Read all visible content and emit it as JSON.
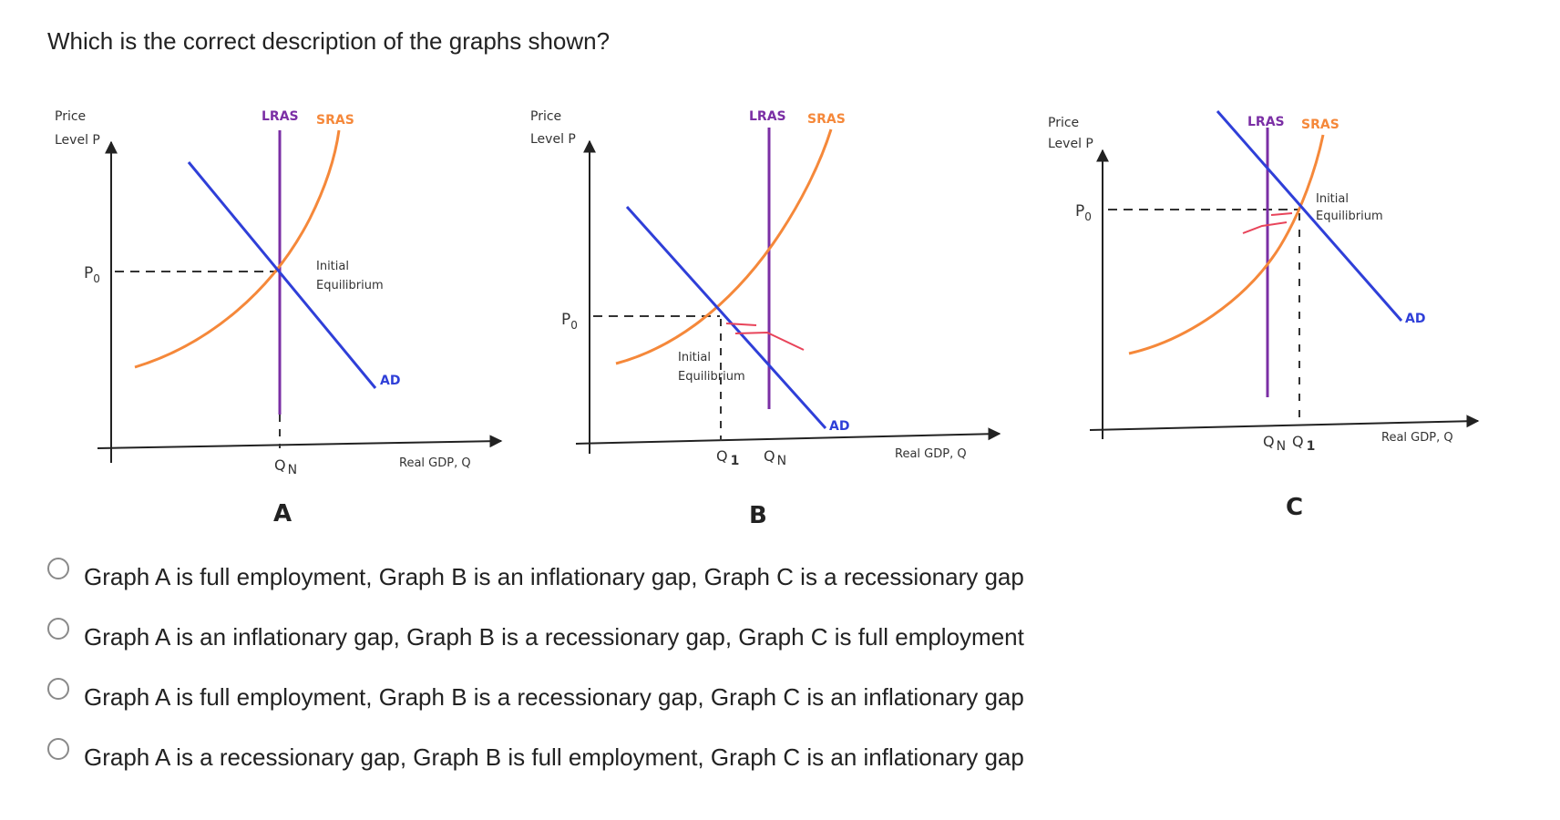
{
  "question": "Which is the correct description of the graphs shown?",
  "graphs": [
    {
      "letter": "A",
      "y_label_1": "Price",
      "y_label_2": "Level P",
      "x_label": "Real GDP, Q",
      "lras_label": "LRAS",
      "sras_label": "SRAS",
      "ad_label": "AD",
      "p_label": "P",
      "p_sub": "0",
      "q_labels": [
        {
          "text": "Q",
          "sub": "N"
        }
      ],
      "annotation_1": "Initial",
      "annotation_2": "Equilibrium"
    },
    {
      "letter": "B",
      "y_label_1": "Price",
      "y_label_2": "Level P",
      "x_label": "Real GDP, Q",
      "lras_label": "LRAS",
      "sras_label": "SRAS",
      "ad_label": "AD",
      "p_label": "P",
      "p_sub": "0",
      "q_labels": [
        {
          "text": "Q",
          "sub": "1"
        },
        {
          "text": "Q",
          "sub": "N"
        }
      ],
      "annotation_1": "Initial",
      "annotation_2": "Equilibrium"
    },
    {
      "letter": "C",
      "y_label_1": "Price",
      "y_label_2": "Level P",
      "x_label": "Real GDP, Q",
      "lras_label": "LRAS",
      "sras_label": "SRAS",
      "ad_label": "AD",
      "p_label": "P",
      "p_sub": "0",
      "q_labels": [
        {
          "text": "Q",
          "sub": "N"
        },
        {
          "text": "Q",
          "sub": "1"
        }
      ],
      "annotation_1": "Initial",
      "annotation_2": "Equilibrium"
    }
  ],
  "colors": {
    "lras": "#7b2fa5",
    "sras": "#f5883a",
    "ad": "#2f3fd8",
    "arrow": "#e8445a",
    "axis": "#222222"
  },
  "options": [
    "Graph A is full employment, Graph B is an inflationary gap, Graph C is a recessionary gap",
    "Graph A is an inflationary gap, Graph B is a recessionary gap, Graph C is full employment",
    "Graph A is full employment, Graph B is a recessionary gap, Graph C is an inflationary gap",
    "Graph A is a recessionary gap, Graph B is full employment, Graph C is an inflationary gap"
  ]
}
